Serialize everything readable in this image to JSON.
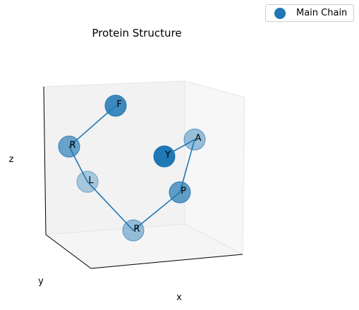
{
  "chart_data": {
    "type": "scatter",
    "projection": "3d",
    "title": "Protein Structure",
    "xlabel": "x",
    "ylabel": "y",
    "zlabel": "z",
    "grid": false,
    "legend": {
      "placement": "top-right",
      "entries": [
        {
          "name": "Main Chain",
          "color": "#1f77b4"
        }
      ]
    },
    "series": [
      {
        "name": "Main Chain",
        "color": "#1f77b4",
        "residues": [
          "F",
          "R",
          "L",
          "R",
          "P",
          "A",
          "Y"
        ],
        "chain_order": [
          "F",
          "R",
          "L",
          "R",
          "P",
          "A",
          "Y"
        ],
        "depth_shading": [
          0.85,
          0.65,
          0.35,
          0.45,
          0.7,
          0.45,
          1.0
        ]
      }
    ]
  }
}
